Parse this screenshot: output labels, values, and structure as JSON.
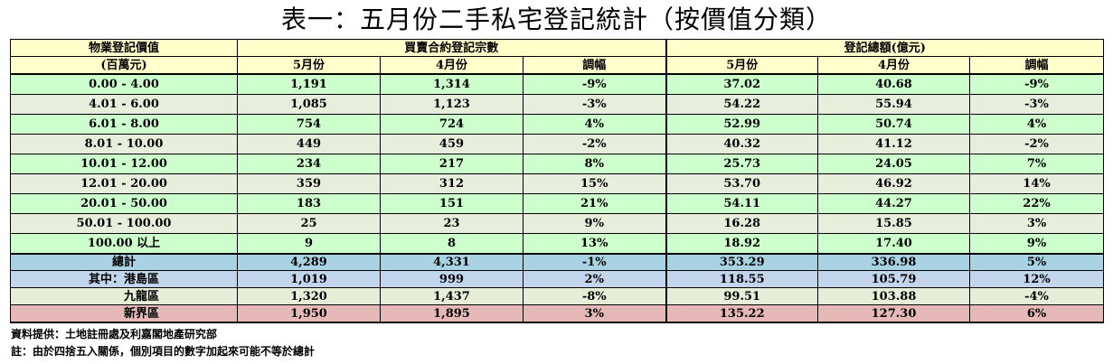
{
  "title": "表一：五月份二手私宅登記統計（按價值分類）",
  "header": {
    "col0_line1": "物業登記價值",
    "col0_line2": "(百萬元)",
    "group1": "買賣合約登記宗數",
    "group2": "登記總額(億元)",
    "sub": [
      "5月份",
      "4月份",
      "調幅",
      "5月份",
      "4月份",
      "調幅"
    ]
  },
  "colors": {
    "header_bg": "#ffffcc",
    "green": "#ccffcc",
    "grey_green": "#e8eedc",
    "total_blue": "#a9d3e3",
    "hk_blue": "#c2d5ed",
    "kowloon_green": "#e6eed8",
    "nt_pink": "#e6b8b8"
  },
  "rows": [
    {
      "label": "0.00 - 4.00",
      "c": [
        "1,191",
        "1,314",
        "-9%",
        "37.02",
        "40.68",
        "-9%"
      ],
      "bg": "#ccffcc"
    },
    {
      "label": "4.01 - 6.00",
      "c": [
        "1,085",
        "1,123",
        "-3%",
        "54.22",
        "55.94",
        "-3%"
      ],
      "bg": "#e8eedc"
    },
    {
      "label": "6.01 - 8.00",
      "c": [
        "754",
        "724",
        "4%",
        "52.99",
        "50.74",
        "4%"
      ],
      "bg": "#ccffcc"
    },
    {
      "label": "8.01 - 10.00",
      "c": [
        "449",
        "459",
        "-2%",
        "40.32",
        "41.12",
        "-2%"
      ],
      "bg": "#e8eedc"
    },
    {
      "label": "10.01 - 12.00",
      "c": [
        "234",
        "217",
        "8%",
        "25.73",
        "24.05",
        "7%"
      ],
      "bg": "#ccffcc"
    },
    {
      "label": "12.01 - 20.00",
      "c": [
        "359",
        "312",
        "15%",
        "53.70",
        "46.92",
        "14%"
      ],
      "bg": "#e8eedc"
    },
    {
      "label": "20.01 - 50.00",
      "c": [
        "183",
        "151",
        "21%",
        "54.11",
        "44.27",
        "22%"
      ],
      "bg": "#ccffcc"
    },
    {
      "label": "50.01 - 100.00",
      "c": [
        "25",
        "23",
        "9%",
        "16.28",
        "15.85",
        "3%"
      ],
      "bg": "#e8eedc"
    },
    {
      "label": "100.00 以上",
      "c": [
        "9",
        "8",
        "13%",
        "18.92",
        "17.40",
        "9%"
      ],
      "bg": "#ccffcc"
    }
  ],
  "total": {
    "label": "總計",
    "c": [
      "4,289",
      "4,331",
      "-1%",
      "353.29",
      "336.98",
      "5%"
    ]
  },
  "hk": {
    "label": "其中：港島區",
    "c": [
      "1,019",
      "999",
      "2%",
      "118.55",
      "105.79",
      "12%"
    ]
  },
  "kowloon": {
    "label": "九龍區",
    "c": [
      "1,320",
      "1,437",
      "-8%",
      "99.51",
      "103.88",
      "-4%"
    ]
  },
  "nt": {
    "label": "新界區",
    "c": [
      "1,950",
      "1,895",
      "3%",
      "135.22",
      "127.30",
      "6%"
    ]
  },
  "notes": {
    "source": "資料提供：土地註冊處及利嘉閣地產研究部",
    "remark": "註：由於四捨五入關係，個別項目的數字加起來可能不等於總計"
  }
}
